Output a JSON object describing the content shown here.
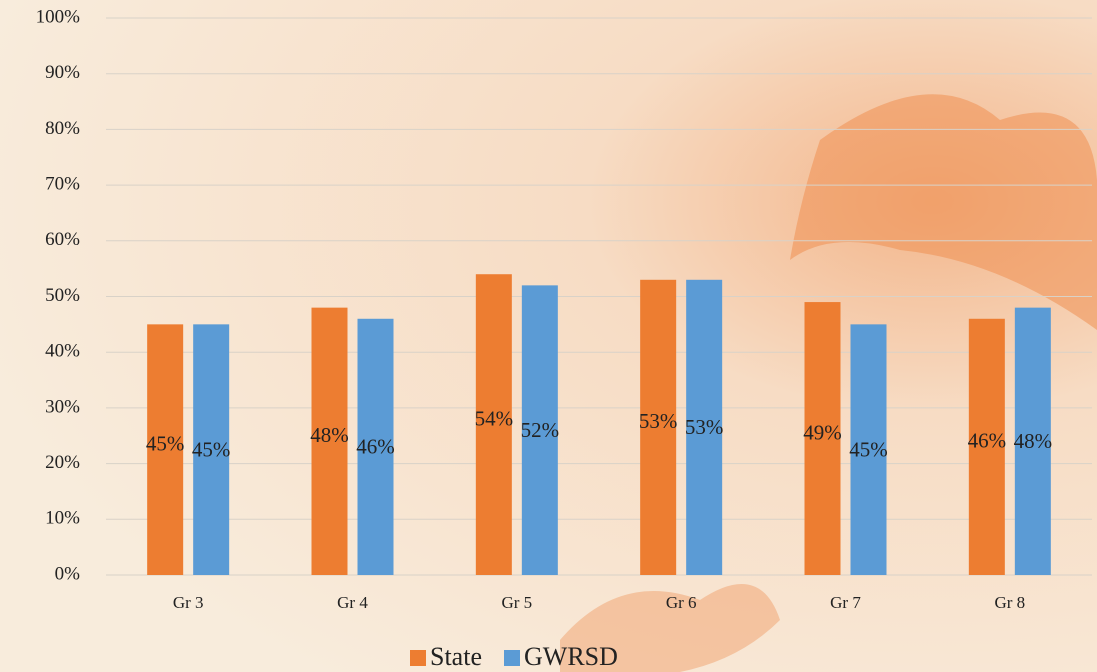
{
  "chart_data": {
    "type": "bar",
    "categories": [
      "Gr 3",
      "Gr 4",
      "Gr 5",
      "Gr 6",
      "Gr 7",
      "Gr 8"
    ],
    "series": [
      {
        "name": "State",
        "color": "#ED7D31",
        "values": [
          45,
          48,
          54,
          53,
          49,
          46
        ],
        "value_labels": [
          "45%",
          "48%",
          "54%",
          "53%",
          "49%",
          "46%"
        ]
      },
      {
        "name": "GWRSD",
        "color": "#5B9BD5",
        "values": [
          45,
          46,
          52,
          53,
          45,
          48
        ],
        "value_labels": [
          "45%",
          "46%",
          "52%",
          "53%",
          "45%",
          "48%"
        ]
      }
    ],
    "ylim": [
      0,
      100
    ],
    "yticks": [
      {
        "value": 0,
        "label": "0%"
      },
      {
        "value": 10,
        "label": "10%"
      },
      {
        "value": 20,
        "label": "20%"
      },
      {
        "value": 30,
        "label": "30%"
      },
      {
        "value": 40,
        "label": "40%"
      },
      {
        "value": 50,
        "label": "50%"
      },
      {
        "value": 60,
        "label": "60%"
      },
      {
        "value": 70,
        "label": "70%"
      },
      {
        "value": 80,
        "label": "80%"
      },
      {
        "value": 90,
        "label": "90%"
      },
      {
        "value": 100,
        "label": "100%"
      }
    ],
    "grid": true,
    "legend": "bottom"
  }
}
